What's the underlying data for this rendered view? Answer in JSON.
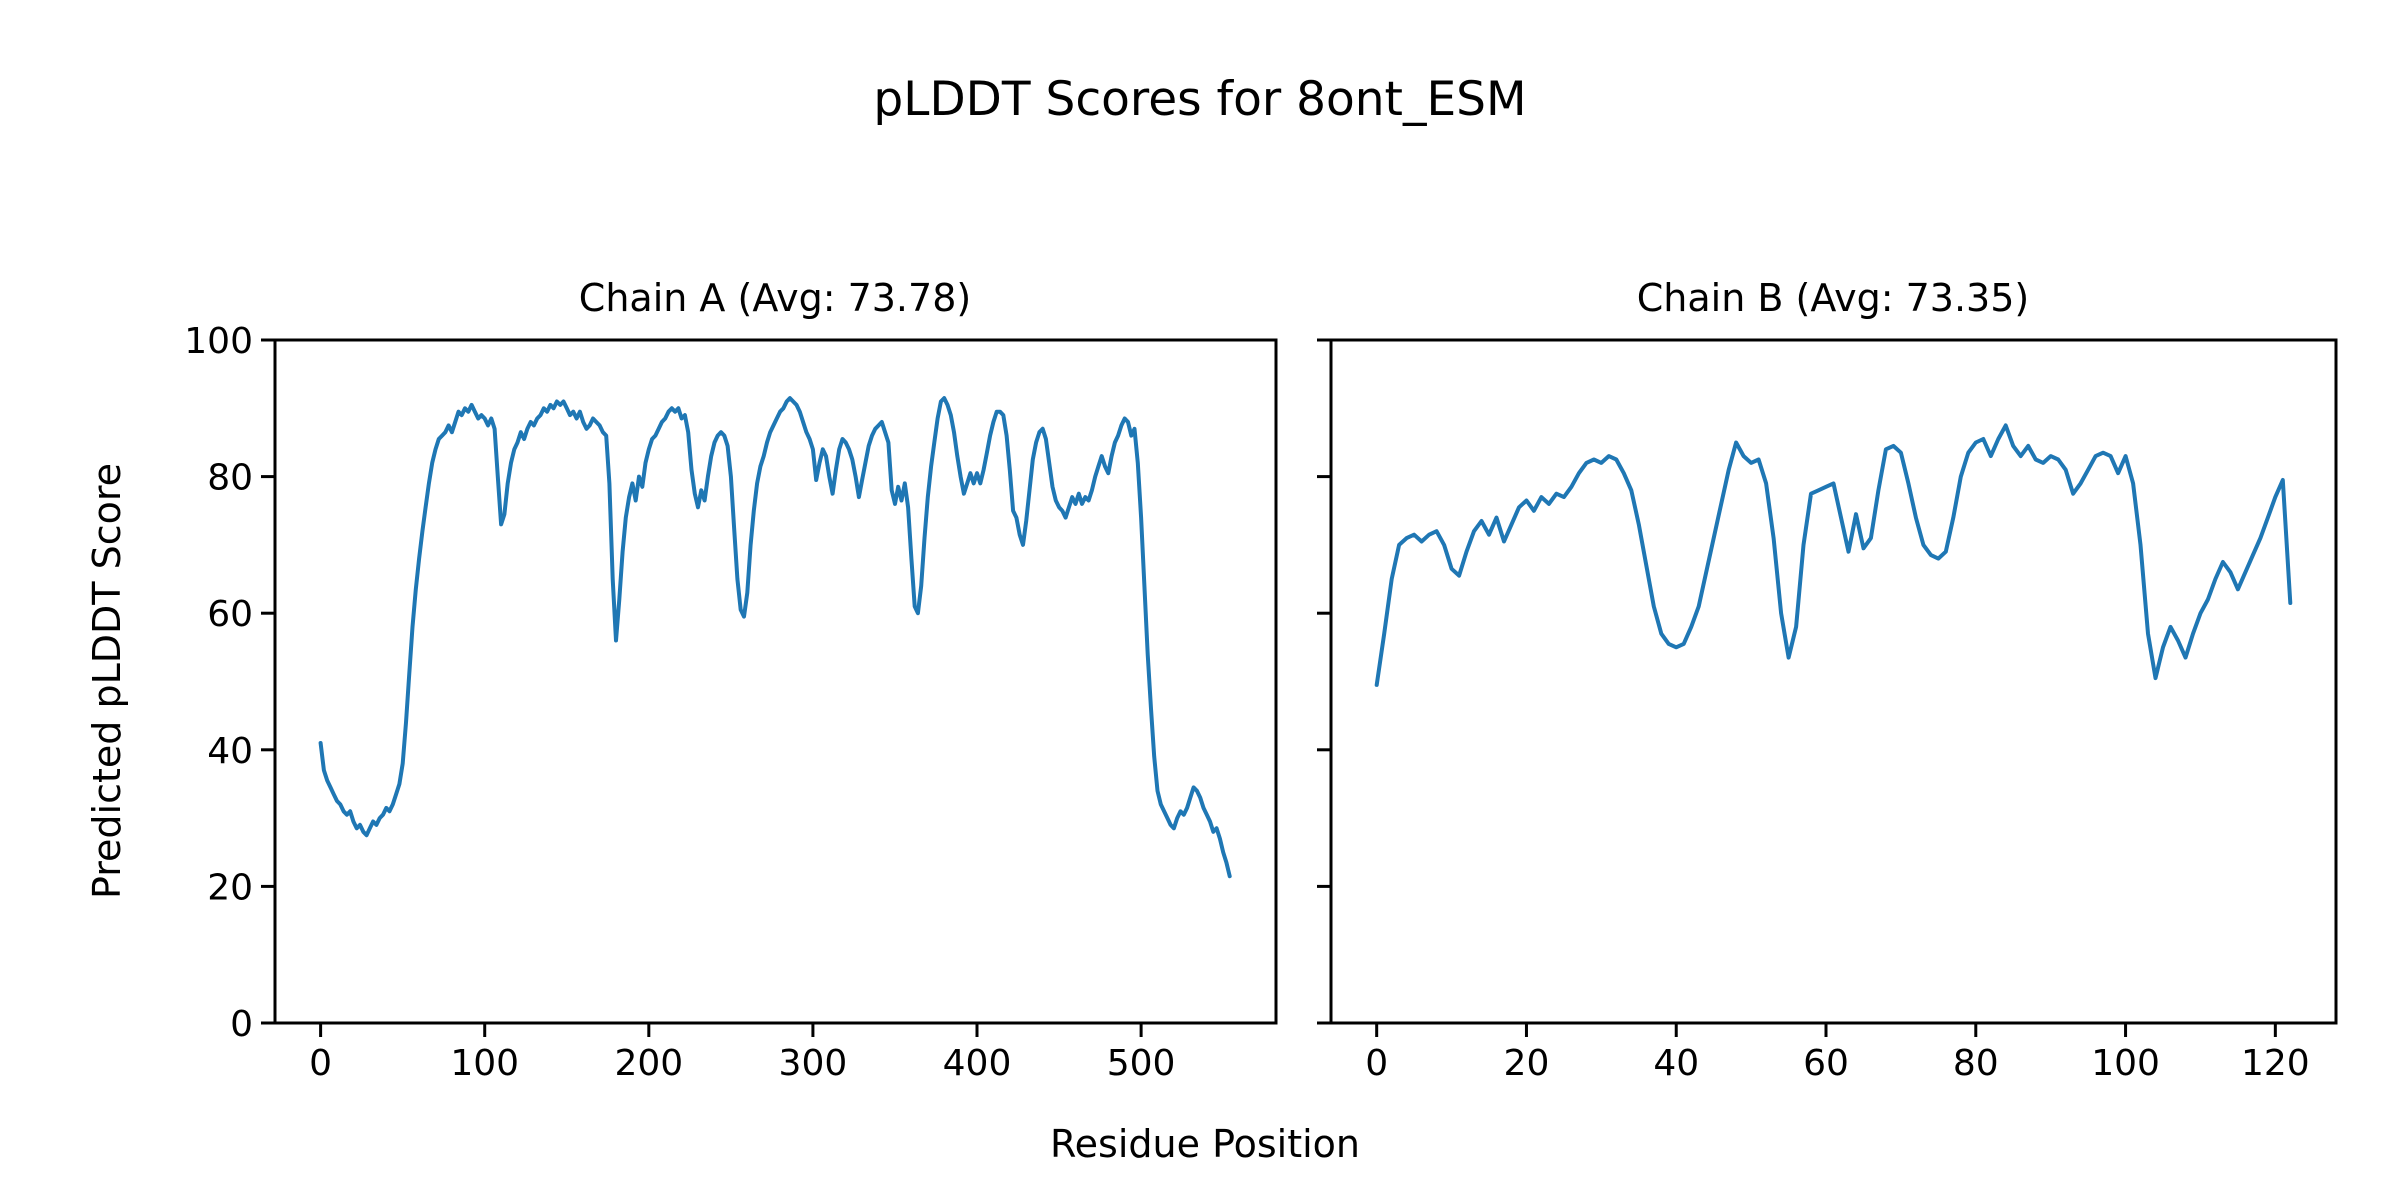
{
  "figure": {
    "suptitle": "pLDDT Scores for 8ont_ESM",
    "xlabel": "Residue Position",
    "ylabel": "Predicted pLDDT Score",
    "background_color": "#ffffff",
    "line_color": "#1f77b4",
    "axis_color": "#000000"
  },
  "chart_data": [
    {
      "type": "line",
      "title": "Chain A (Avg: 73.78)",
      "series_name": "Chain A pLDDT",
      "avg": 73.78,
      "xlim": [
        -27.8,
        582.2
      ],
      "ylim": [
        0,
        100
      ],
      "xticks": [
        0,
        100,
        200,
        300,
        400,
        500
      ],
      "yticks": [
        0,
        20,
        40,
        60,
        80,
        100
      ],
      "ytick_labels_visible": true,
      "x_start": 0,
      "x_step": 2,
      "values": [
        41,
        37,
        35.5,
        34.5,
        33.5,
        32.5,
        32,
        31,
        30.5,
        31,
        29.5,
        28.5,
        29,
        28,
        27.5,
        28.5,
        29.5,
        29,
        30,
        30.5,
        31.5,
        31,
        32,
        33.5,
        35,
        38,
        44,
        51,
        58,
        63.5,
        68,
        72,
        75.5,
        79,
        82,
        84,
        85.5,
        86,
        86.5,
        87.5,
        86.5,
        88,
        89.5,
        89,
        90,
        89.5,
        90.5,
        89.5,
        88.5,
        89,
        88.5,
        87.5,
        88.5,
        87,
        80,
        73,
        74.5,
        79,
        82,
        84,
        85,
        86.5,
        85.5,
        87,
        88,
        87.5,
        88.5,
        89,
        90,
        89.5,
        90.5,
        90,
        91,
        90.5,
        91,
        90,
        89,
        89.5,
        88.5,
        89.5,
        88,
        87,
        87.5,
        88.5,
        88,
        87.5,
        86.5,
        86,
        79,
        65,
        56,
        62,
        69,
        74,
        77,
        79,
        76.5,
        80,
        78.5,
        82,
        84,
        85.5,
        86,
        87,
        88,
        88.5,
        89.5,
        90,
        89.5,
        90,
        88.5,
        89,
        86.5,
        81,
        77.5,
        75.5,
        78,
        76.5,
        80,
        83,
        85,
        86,
        86.5,
        86,
        84.5,
        80,
        72.5,
        65,
        60.5,
        59.5,
        63,
        70,
        75,
        79,
        81.5,
        83,
        85,
        86.5,
        87.5,
        88.5,
        89.5,
        90,
        91,
        91.5,
        91,
        90.5,
        89.5,
        88,
        86.5,
        85.5,
        84,
        79.5,
        82,
        84,
        83,
        80,
        77.5,
        81,
        84,
        85.5,
        85,
        84,
        82.5,
        80,
        77,
        79.5,
        82,
        84.5,
        86,
        87,
        87.5,
        88,
        86.5,
        85,
        78,
        76,
        78.5,
        76.5,
        79,
        75.5,
        68,
        61,
        60,
        64,
        71,
        77,
        81.5,
        85,
        88.5,
        91,
        91.5,
        90.5,
        89,
        86.5,
        83,
        80,
        77.5,
        79,
        80.5,
        79,
        80.5,
        79,
        81,
        83.5,
        86,
        88,
        89.5,
        89.5,
        89,
        86,
        81,
        75,
        74,
        71.5,
        70,
        73.5,
        78,
        82.5,
        85,
        86.5,
        87,
        85.5,
        82,
        78.5,
        76.5,
        75.5,
        75,
        74,
        75.5,
        77,
        76,
        77.5,
        76,
        77,
        76.5,
        78,
        80,
        81.5,
        83,
        81.5,
        80.5,
        83,
        85,
        86,
        87.5,
        88.5,
        88,
        86,
        87,
        82,
        74,
        64,
        54,
        46,
        39,
        34,
        32,
        31,
        30,
        29,
        28.5,
        30,
        31,
        30.5,
        31.5,
        33,
        34.5,
        34,
        33,
        31.5,
        30.5,
        29.5,
        28,
        28.5,
        27,
        25,
        23.5,
        21.5
      ]
    },
    {
      "type": "line",
      "title": "Chain B (Avg: 73.35)",
      "series_name": "Chain B pLDDT",
      "avg": 73.35,
      "xlim": [
        -6.1,
        128.1
      ],
      "ylim": [
        0,
        100
      ],
      "xticks": [
        0,
        20,
        40,
        60,
        80,
        100,
        120
      ],
      "yticks": [
        0,
        20,
        40,
        60,
        80,
        100
      ],
      "ytick_labels_visible": false,
      "x_start": 0,
      "x_step": 1,
      "values": [
        49.5,
        57,
        65,
        70,
        71,
        71.5,
        70.5,
        71.5,
        72,
        70,
        66.5,
        65.5,
        69,
        72,
        73.5,
        71.5,
        74,
        70.5,
        73,
        75.5,
        76.5,
        75,
        77,
        76,
        77.5,
        77,
        78.5,
        80.5,
        82,
        82.5,
        82,
        83,
        82.5,
        80.5,
        78,
        73,
        67,
        61,
        57,
        55.5,
        55,
        55.5,
        58,
        61,
        66,
        71,
        76,
        81,
        85,
        83,
        82,
        82.5,
        79,
        71,
        60,
        53.5,
        58,
        70,
        77.5,
        78,
        78.5,
        79,
        74,
        69,
        74.5,
        69.5,
        71,
        78,
        84,
        84.5,
        83.5,
        79,
        74,
        70,
        68.5,
        68,
        69,
        74,
        80,
        83.5,
        85,
        85.5,
        83,
        85.5,
        87.5,
        84.5,
        83,
        84.5,
        82.5,
        82,
        83,
        82.5,
        81,
        77.5,
        79,
        81,
        83,
        83.5,
        83,
        80.5,
        83,
        79,
        70,
        57,
        50.5,
        55,
        58,
        56,
        53.5,
        57,
        60,
        62,
        65,
        67.5,
        66,
        63.5,
        66,
        68.5,
        71,
        74,
        77,
        79.5,
        61.5
      ]
    }
  ]
}
